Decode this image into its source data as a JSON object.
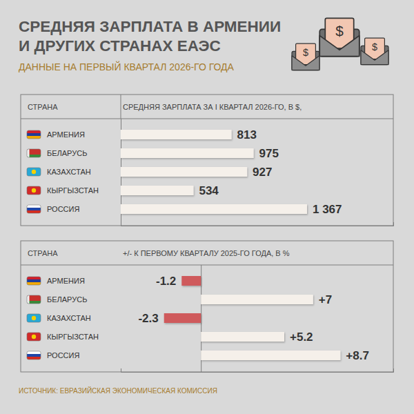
{
  "header": {
    "title": [
      "СРЕДНЯЯ ЗАРПЛАТА В АРМЕНИИ",
      "И ДРУГИХ СТРАНАХ ЕАЭС"
    ],
    "subtitle": "ДАННЫЕ НА ПЕРВЫЙ КВАРТАЛ 2026-ГО ГОДА",
    "icon": "$"
  },
  "source": "ИСТОЧНИК: ЕВРАЗИЙСКАЯ ЭКОНОМИЧЕСКАЯ КОМИССИЯ",
  "chart_data": [
    {
      "type": "bar",
      "orientation": "horizontal",
      "title": "СРЕДНЯЯ ЗАРПЛАТА ЗА I КВАРТАЛ 2026-ГО, В $,",
      "ylabel": "СТРАНА",
      "categories": [
        "АРМЕНИЯ",
        "БЕЛАРУСЬ",
        "КАЗАХСТАН",
        "КЫРГЫЗСТАН",
        "РОССИЯ"
      ],
      "values": [
        813,
        975,
        927,
        534,
        1367
      ],
      "value_labels": [
        "813",
        "975",
        "927",
        "534",
        "1 367"
      ],
      "color": "#f5f0ea",
      "xlim": [
        0,
        2000
      ],
      "xticks": [
        0
      ],
      "data_labels": true,
      "tick_labels": "y",
      "grid": false
    },
    {
      "type": "bar",
      "orientation": "horizontal",
      "title": "+/- К ПЕРВОМУ КВАРТАЛУ 2025-ГО ГОДА, В %",
      "ylabel": "СТРАНА",
      "categories": [
        "АРМЕНИЯ",
        "БЕЛАРУСЬ",
        "КАЗАХСТАН",
        "КЫРГЫЗСТАН",
        "РОССИЯ"
      ],
      "values": [
        -1.2,
        7,
        -2.3,
        5.2,
        8.7
      ],
      "value_labels": [
        "-1.2",
        "+7",
        "-2.3",
        "+5.2",
        "+8.7"
      ],
      "colors": [
        "#cf5a5c",
        "#f5f0ea",
        "#cf5a5c",
        "#f5f0ea",
        "#f5f0ea"
      ],
      "xlim": [
        -5,
        12
      ],
      "xticks": [
        0
      ],
      "data_labels": true,
      "tick_labels": "y",
      "grid": false
    }
  ]
}
